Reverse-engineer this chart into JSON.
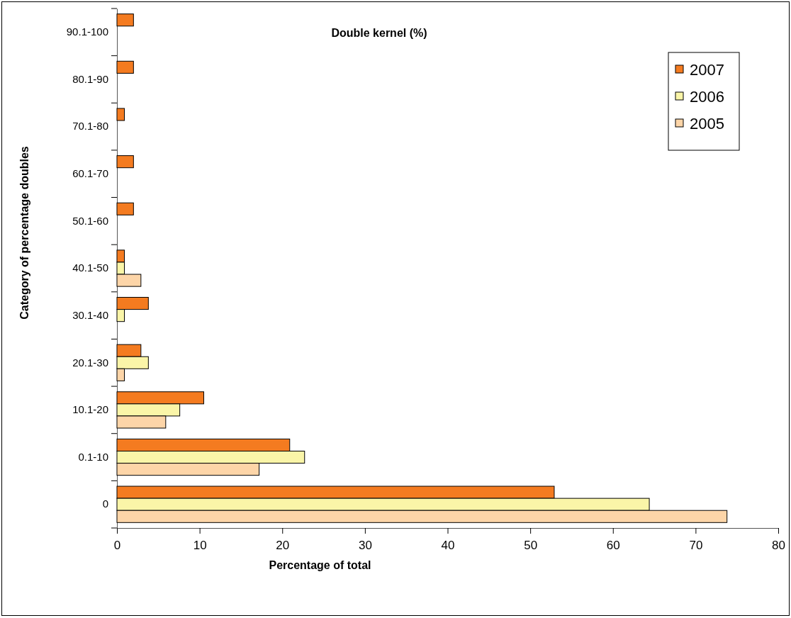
{
  "chart_data": {
    "type": "bar",
    "orientation": "horizontal",
    "title": "Double kernel (%)",
    "xlabel": "Percentage of total",
    "ylabel": "Category of percentage doubles",
    "categories": [
      "90.1-100",
      "80.1-90",
      "70.1-80",
      "60.1-70",
      "50.1-60",
      "40.1-50",
      "30.1-40",
      "20.1-30",
      "10.1-20",
      "0.1-10",
      "0"
    ],
    "series": [
      {
        "name": "2007",
        "color": "#f47b20",
        "values": [
          2,
          2,
          0.9,
          2,
          2,
          0.9,
          3.8,
          2.9,
          10.5,
          20.9,
          52.9
        ]
      },
      {
        "name": "2006",
        "color": "#faf5a8",
        "values": [
          null,
          null,
          null,
          null,
          null,
          0.9,
          0.9,
          3.8,
          7.6,
          22.7,
          64.4
        ]
      },
      {
        "name": "2005",
        "color": "#fdd5a8",
        "values": [
          null,
          null,
          null,
          null,
          null,
          2.9,
          null,
          0.9,
          5.9,
          17.2,
          73.8
        ]
      }
    ],
    "xlim": [
      0,
      80
    ],
    "xticks": [
      0,
      10,
      20,
      30,
      40,
      50,
      60,
      70,
      80
    ],
    "grid": false,
    "legend": "top right"
  }
}
